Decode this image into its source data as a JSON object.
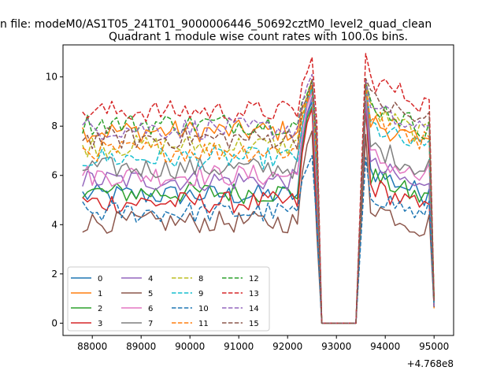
{
  "chart_data": {
    "type": "line",
    "suptitle": "n file: modeM0/AS1T05_241T01_9000006446_50692cztM0_level2_quad_clean",
    "title": "Quadrant 1 module wise count rates with 100.0s bins.",
    "xlabel": "",
    "ylabel": "",
    "x_offset_label": "+4.768e8",
    "xlim": [
      87400,
      95400
    ],
    "ylim": [
      -0.5,
      11.3
    ],
    "xticks": [
      88000,
      89000,
      90000,
      91000,
      92000,
      93000,
      94000,
      95000
    ],
    "yticks": [
      0,
      2,
      4,
      6,
      8,
      10
    ],
    "grid": false,
    "legend_position": "lower-left",
    "legend_columns": 4,
    "colors": [
      "#1f77b4",
      "#ff7f0e",
      "#2ca02c",
      "#d62728",
      "#9467bd",
      "#8c564b",
      "#e377c2",
      "#7f7f7f",
      "#bcbd22",
      "#17becf",
      "#1f77b4",
      "#ff7f0e",
      "#2ca02c",
      "#d62728",
      "#9467bd",
      "#8c564b"
    ],
    "series": [
      {
        "name": "0",
        "style": "solid",
        "baseline": 5.2,
        "spike": 9.0,
        "after": 6.2
      },
      {
        "name": "1",
        "style": "solid",
        "baseline": 7.8,
        "spike": 9.6,
        "after": 8.2
      },
      {
        "name": "2",
        "style": "solid",
        "baseline": 5.3,
        "spike": 8.8,
        "after": 6.0
      },
      {
        "name": "3",
        "style": "solid",
        "baseline": 4.9,
        "spike": 8.7,
        "after": 5.6
      },
      {
        "name": "4",
        "style": "solid",
        "baseline": 5.8,
        "spike": 9.2,
        "after": 6.4
      },
      {
        "name": "5",
        "style": "solid",
        "baseline": 4.1,
        "spike": 7.8,
        "after": 4.8
      },
      {
        "name": "6",
        "style": "solid",
        "baseline": 6.0,
        "spike": 9.4,
        "after": 6.8
      },
      {
        "name": "7",
        "style": "solid",
        "baseline": 6.3,
        "spike": 9.6,
        "after": 7.2
      },
      {
        "name": "8",
        "style": "dashed",
        "baseline": 7.2,
        "spike": 9.9,
        "after": 8.6
      },
      {
        "name": "9",
        "style": "dashed",
        "baseline": 6.7,
        "spike": 9.5,
        "after": 8.0
      },
      {
        "name": "10",
        "style": "dashed",
        "baseline": 4.5,
        "spike": 6.8,
        "after": 5.3
      },
      {
        "name": "11",
        "style": "dashed",
        "baseline": 7.0,
        "spike": 9.7,
        "after": 8.4
      },
      {
        "name": "12",
        "style": "dashed",
        "baseline": 8.1,
        "spike": 9.8,
        "after": 8.9
      },
      {
        "name": "13",
        "style": "dashed",
        "baseline": 8.6,
        "spike": 10.8,
        "after": 9.9
      },
      {
        "name": "14",
        "style": "dashed",
        "baseline": 7.9,
        "spike": 10.1,
        "after": 8.7
      },
      {
        "name": "15",
        "style": "dashed",
        "baseline": 7.5,
        "spike": 9.9,
        "after": 9.1
      }
    ]
  }
}
